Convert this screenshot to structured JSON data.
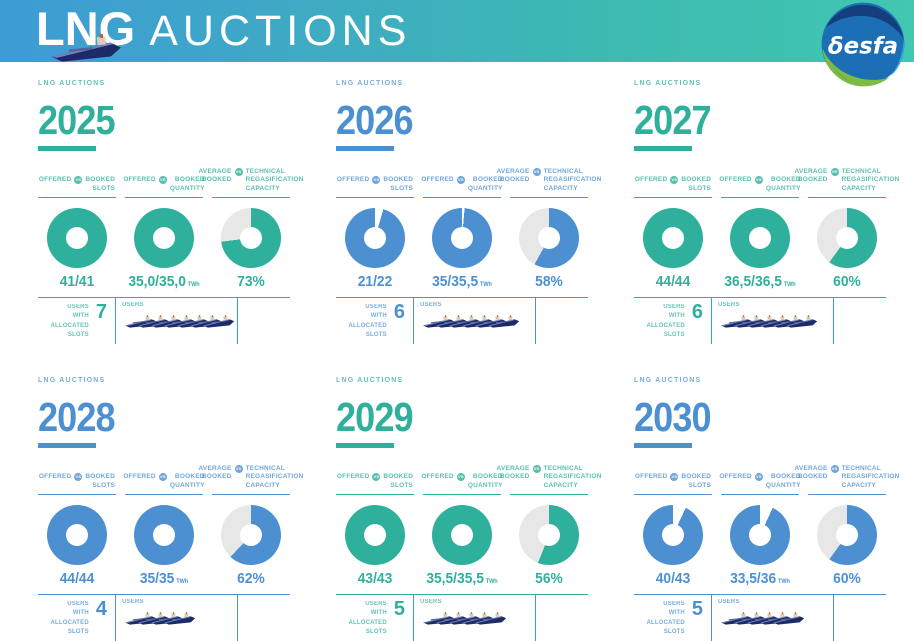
{
  "header": {
    "title_bold": "LNG",
    "title_light": "AUCTIONS",
    "logo_text": "δesfa"
  },
  "colors": {
    "teal": "#2FB09C",
    "blue": "#4D90D2",
    "donut_gray": "#E7E7E7",
    "donut_gap_white": "#FFFFFF",
    "ship_navy": "#1C2A66",
    "header_gradient_left": "#3E9BD5",
    "header_gradient_right": "#41C7B2"
  },
  "labels": {
    "panel_tag": "LNG AUCTIONS",
    "vs": "VS",
    "stat_slots": {
      "left": "OFFERED",
      "r1": "BOOKED",
      "r2": "SLOTS"
    },
    "stat_quantity": {
      "left": "OFFERED",
      "r1": "BOOKED",
      "r2": "QUANTITY"
    },
    "stat_capacity": {
      "l1": "AVERAGE",
      "l2": "BOOKED",
      "r1": "TECHNICAL",
      "r2": "REGASIFICATION",
      "r3": "CAPACITY"
    },
    "users_with_lines": {
      "l1": "USERS",
      "l2": "WITH",
      "l3": "ALLOCATED",
      "l4": "SLOTS"
    },
    "users": "USERS"
  },
  "chart_data": {
    "type": "pie",
    "title": "LNG AUCTIONS",
    "description": "Six yearly panels (2025-2030), each with three donut charts: offered vs booked slots, offered vs booked quantity in TWh, and average booked vs technical regasification capacity (%), plus number of users with allocated slots.",
    "years": [
      {
        "year": "2025",
        "color": "teal",
        "slots": {
          "offered": 41,
          "booked": 41,
          "display": "41/41",
          "pct": 100,
          "gap": "end"
        },
        "quantity": {
          "offered": 35.0,
          "booked": 35.0,
          "display": "35,0/35,0",
          "unit": "TWh",
          "pct": 100,
          "gap": "end"
        },
        "capacity": {
          "pct": 73,
          "display": "73%",
          "gap": "end"
        },
        "users_with_allocated_slots": 7
      },
      {
        "year": "2026",
        "color": "blue",
        "slots": {
          "offered": 22,
          "booked": 21,
          "display": "21/22",
          "pct": 95.5,
          "gap": "start"
        },
        "quantity": {
          "offered": 35.5,
          "booked": 35,
          "display": "35/35,5",
          "unit": "TWh",
          "pct": 98.6,
          "gap": "start"
        },
        "capacity": {
          "pct": 58,
          "display": "58%",
          "gap": "end"
        },
        "users_with_allocated_slots": 6
      },
      {
        "year": "2027",
        "color": "teal",
        "slots": {
          "offered": 44,
          "booked": 44,
          "display": "44/44",
          "pct": 100,
          "gap": "end"
        },
        "quantity": {
          "offered": 36.5,
          "booked": 36.5,
          "display": "36,5/36,5",
          "unit": "TWh",
          "pct": 100,
          "gap": "end"
        },
        "capacity": {
          "pct": 60,
          "display": "60%",
          "gap": "end"
        },
        "users_with_allocated_slots": 6
      },
      {
        "year": "2028",
        "color": "blue",
        "slots": {
          "offered": 44,
          "booked": 44,
          "display": "44/44",
          "pct": 100,
          "gap": "end"
        },
        "quantity": {
          "offered": 35,
          "booked": 35,
          "display": "35/35",
          "unit": "TWh",
          "pct": 100,
          "gap": "end"
        },
        "capacity": {
          "pct": 62,
          "display": "62%",
          "gap": "end"
        },
        "users_with_allocated_slots": 4
      },
      {
        "year": "2029",
        "color": "teal",
        "slots": {
          "offered": 43,
          "booked": 43,
          "display": "43/43",
          "pct": 100,
          "gap": "end"
        },
        "quantity": {
          "offered": 35.5,
          "booked": 35.5,
          "display": "35,5/35,5",
          "unit": "TWh",
          "pct": 100,
          "gap": "end"
        },
        "capacity": {
          "pct": 56,
          "display": "56%",
          "gap": "end"
        },
        "users_with_allocated_slots": 5
      },
      {
        "year": "2030",
        "color": "blue",
        "slots": {
          "offered": 43,
          "booked": 40,
          "display": "40/43",
          "pct": 93,
          "gap": "start"
        },
        "quantity": {
          "offered": 36,
          "booked": 33.5,
          "display": "33,5/36",
          "unit": "TWh",
          "pct": 93,
          "gap": "start"
        },
        "capacity": {
          "pct": 60,
          "display": "60%",
          "gap": "end"
        },
        "users_with_allocated_slots": 5
      }
    ]
  }
}
